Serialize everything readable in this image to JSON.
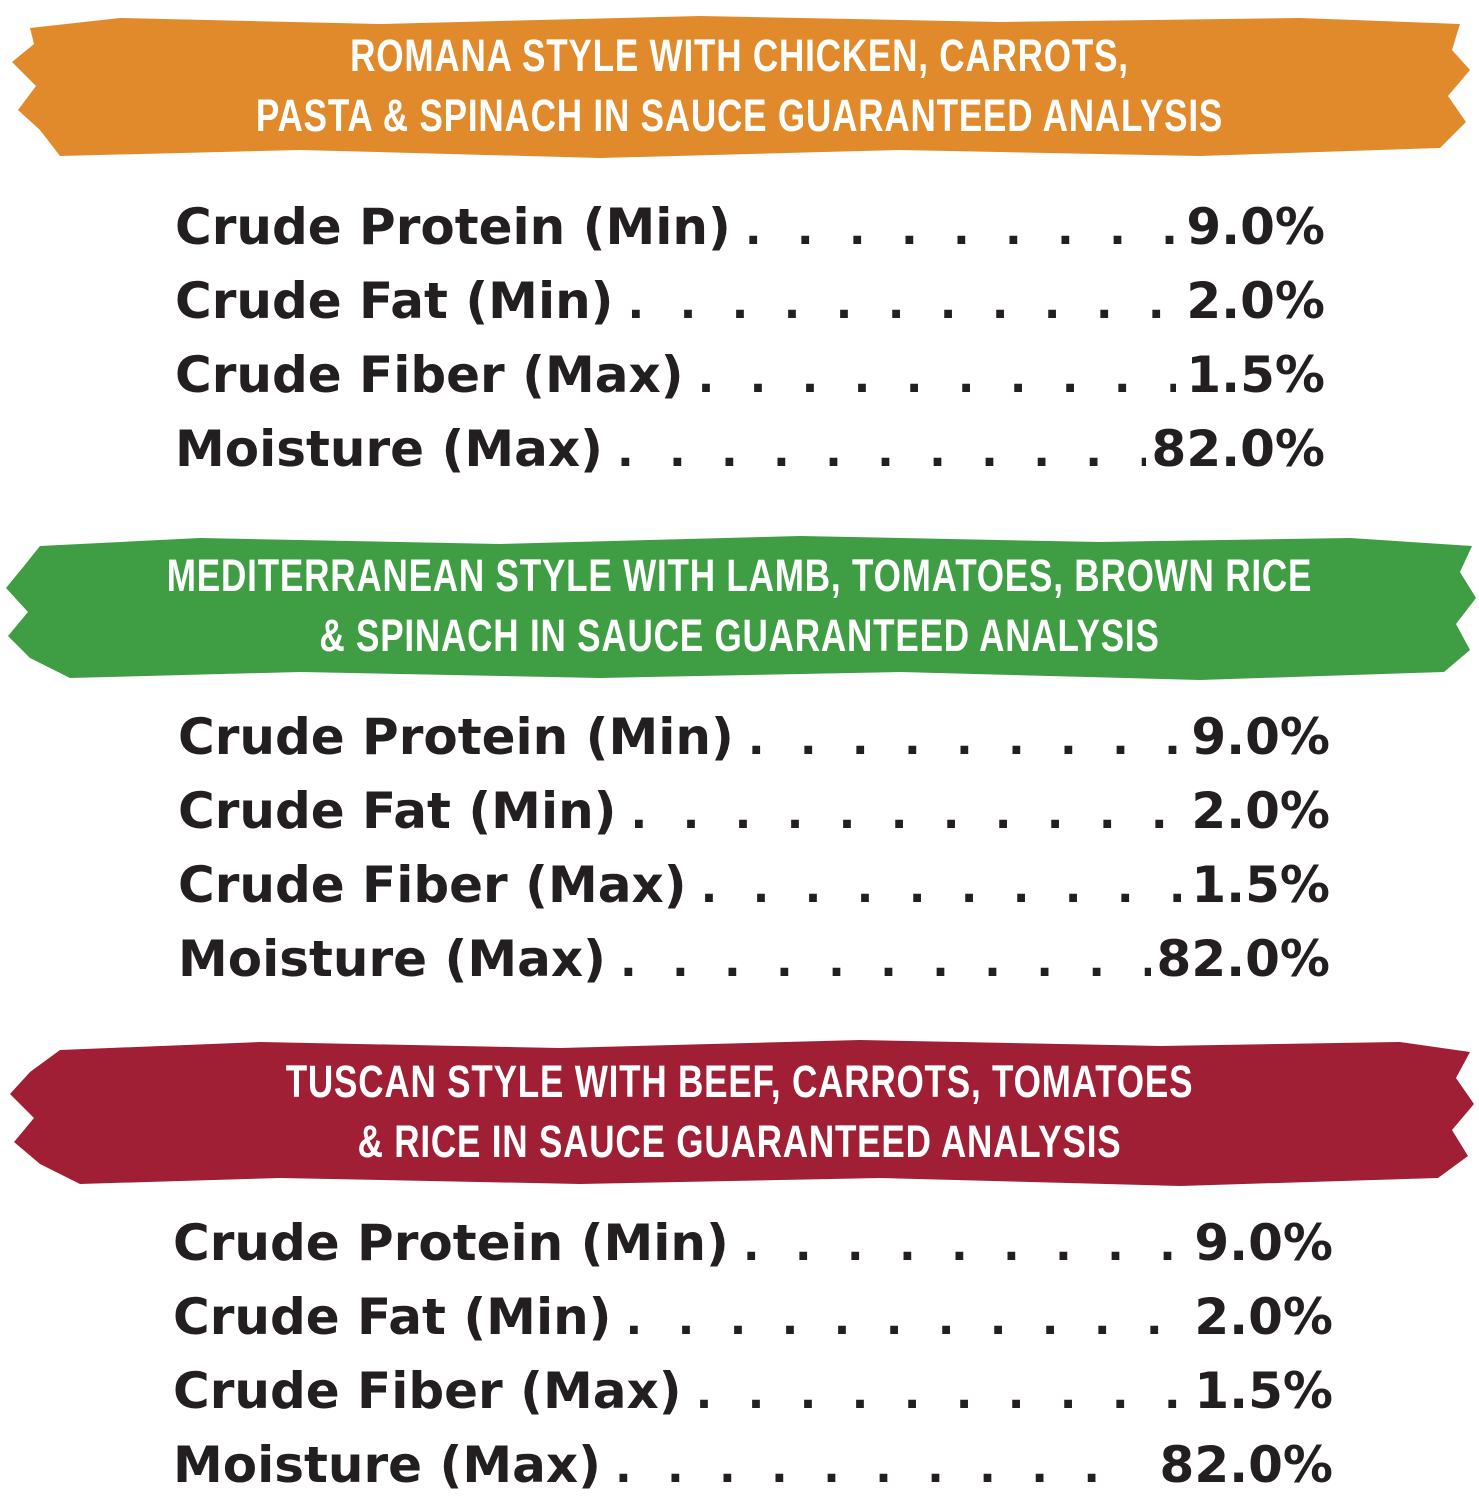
{
  "sections": [
    {
      "heading_line1": "ROMANA STYLE WITH CHICKEN, CARROTS,",
      "heading_line2": "PASTA & SPINACH IN SAUCE GUARANTEED ANALYSIS",
      "color": "#e08a2b",
      "rows": [
        {
          "label": "Crude Protein (Min)",
          "value": "9.0%"
        },
        {
          "label": "Crude Fat (Min)",
          "value": "2.0%"
        },
        {
          "label": "Crude Fiber (Max)",
          "value": "1.5%"
        },
        {
          "label": "Moisture (Max)",
          "value": "82.0%"
        }
      ]
    },
    {
      "heading_line1": "MEDITERRANEAN STYLE WITH LAMB, TOMATOES, BROWN RICE",
      "heading_line2": "& SPINACH IN SAUCE GUARANTEED ANALYSIS",
      "color": "#3f9e44",
      "rows": [
        {
          "label": "Crude Protein (Min)",
          "value": "9.0%"
        },
        {
          "label": "Crude Fat (Min)",
          "value": "2.0%"
        },
        {
          "label": "Crude Fiber (Max)",
          "value": "1.5%"
        },
        {
          "label": "Moisture (Max)",
          "value": "82.0%"
        }
      ]
    },
    {
      "heading_line1": "TUSCAN STYLE WITH BEEF, CARROTS, TOMATOES",
      "heading_line2": "& RICE IN SAUCE GUARANTEED ANALYSIS",
      "color": "#a11f35",
      "rows": [
        {
          "label": "Crude Protein (Min)",
          "value": "9.0%"
        },
        {
          "label": "Crude Fat (Min)",
          "value": "2.0%"
        },
        {
          "label": "Crude Fiber (Max)",
          "value": "1.5%"
        },
        {
          "label": "Moisture (Max)",
          "value": "82.0%"
        }
      ]
    }
  ]
}
